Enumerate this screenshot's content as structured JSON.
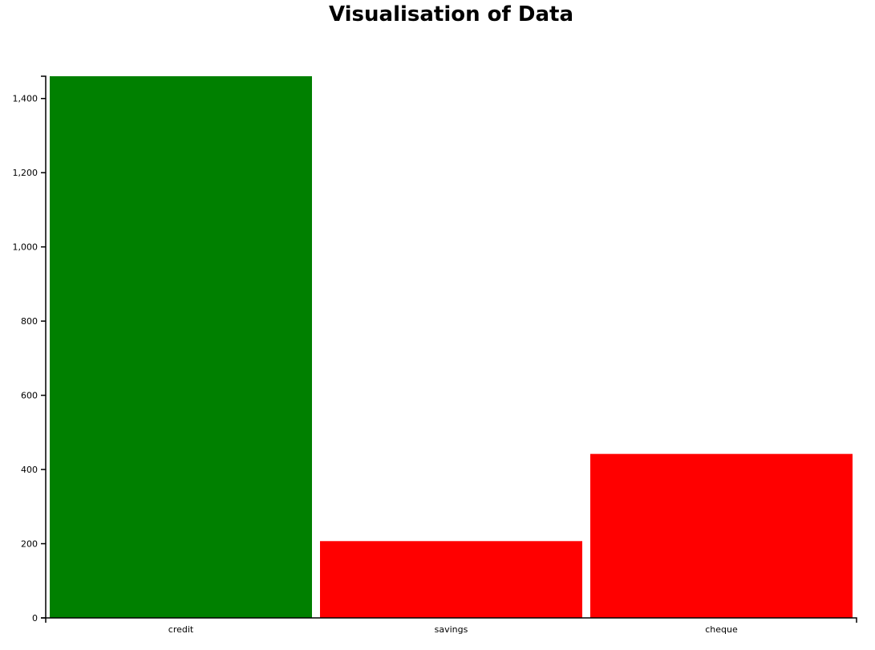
{
  "chart_data": {
    "type": "bar",
    "title": "Visualisation of Data",
    "xlabel": "",
    "ylabel": "",
    "categories": [
      "credit",
      "savings",
      "cheque"
    ],
    "values": [
      1460,
      207,
      442
    ],
    "colors": [
      "#008000",
      "#ff0000",
      "#ff0000"
    ],
    "ylim": [
      0,
      1460
    ],
    "yticks": [
      0,
      200,
      400,
      600,
      800,
      1000,
      1200,
      1400
    ],
    "ytick_labels": [
      "0",
      "200",
      "400",
      "600",
      "800",
      "1,000",
      "1,200",
      "1,400"
    ],
    "grid": false,
    "legend": "none"
  }
}
